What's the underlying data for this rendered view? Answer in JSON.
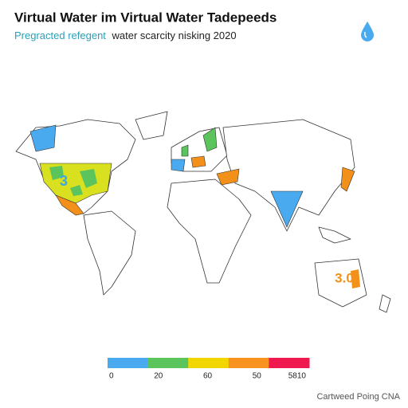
{
  "header": {
    "title": "Virtual Water im Virtual Water Tadepeeds",
    "subtitle": {
      "highlight": "Pregracted refegent",
      "rest": "water scarcity nisking 2020"
    }
  },
  "map_labels": [
    {
      "text": "3",
      "color": "#3ba6e8"
    },
    {
      "text": "3.0",
      "color": "#f39019"
    }
  ],
  "legend": {
    "colors": [
      "#4aaaf0",
      "#5cc45c",
      "#f2d600",
      "#f7931e",
      "#f0194f"
    ],
    "labels": [
      "0",
      "20",
      "60",
      "50",
      "5810"
    ]
  },
  "footer": "Cartweed Poing CNA"
}
